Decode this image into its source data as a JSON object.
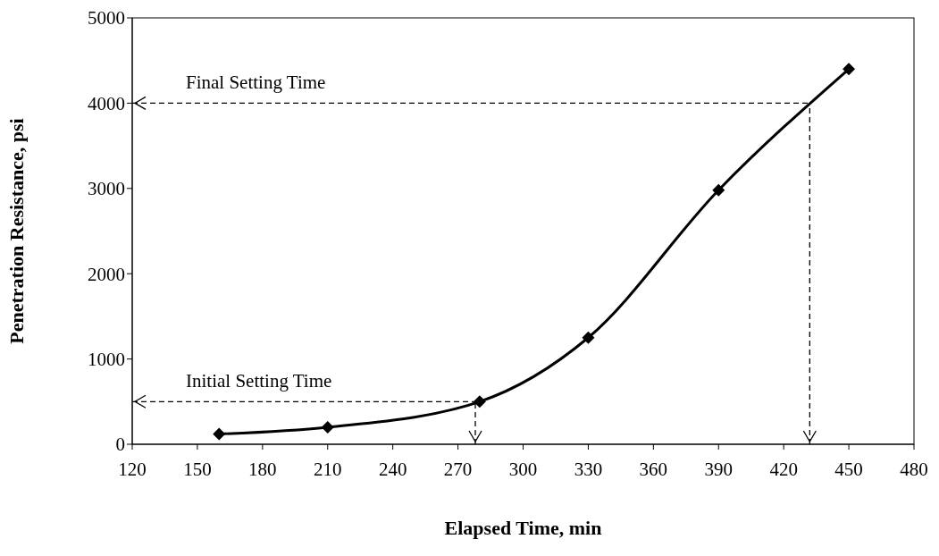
{
  "chart_data": {
    "type": "line",
    "xlabel": "Elapsed Time, min",
    "ylabel": "Penetration Resistance, psi",
    "x": [
      160,
      210,
      280,
      330,
      390,
      450
    ],
    "series": [
      {
        "color": "#000000",
        "values": [
          120,
          200,
          500,
          1250,
          2980,
          4400
        ]
      }
    ],
    "xlim": [
      120,
      480
    ],
    "xticks": [
      120,
      150,
      180,
      210,
      240,
      270,
      300,
      330,
      360,
      390,
      420,
      450,
      480
    ],
    "ylim": [
      0,
      5000
    ],
    "yticks": [
      0,
      1000,
      2000,
      3000,
      4000,
      5000
    ],
    "marker": "diamond",
    "line_style": "solid",
    "ref_lines": [
      {
        "axis": "y",
        "value": 500,
        "label": "Initial Setting Time",
        "color": "#000000",
        "line_style": "dashed"
      },
      {
        "axis": "x",
        "value": 278,
        "color": "#000000",
        "line_style": "dashed"
      },
      {
        "axis": "y",
        "value": 4000,
        "label": "Final Setting Time",
        "color": "#000000",
        "line_style": "dashed"
      },
      {
        "axis": "x",
        "value": 432,
        "color": "#000000",
        "line_style": "dashed"
      }
    ]
  }
}
